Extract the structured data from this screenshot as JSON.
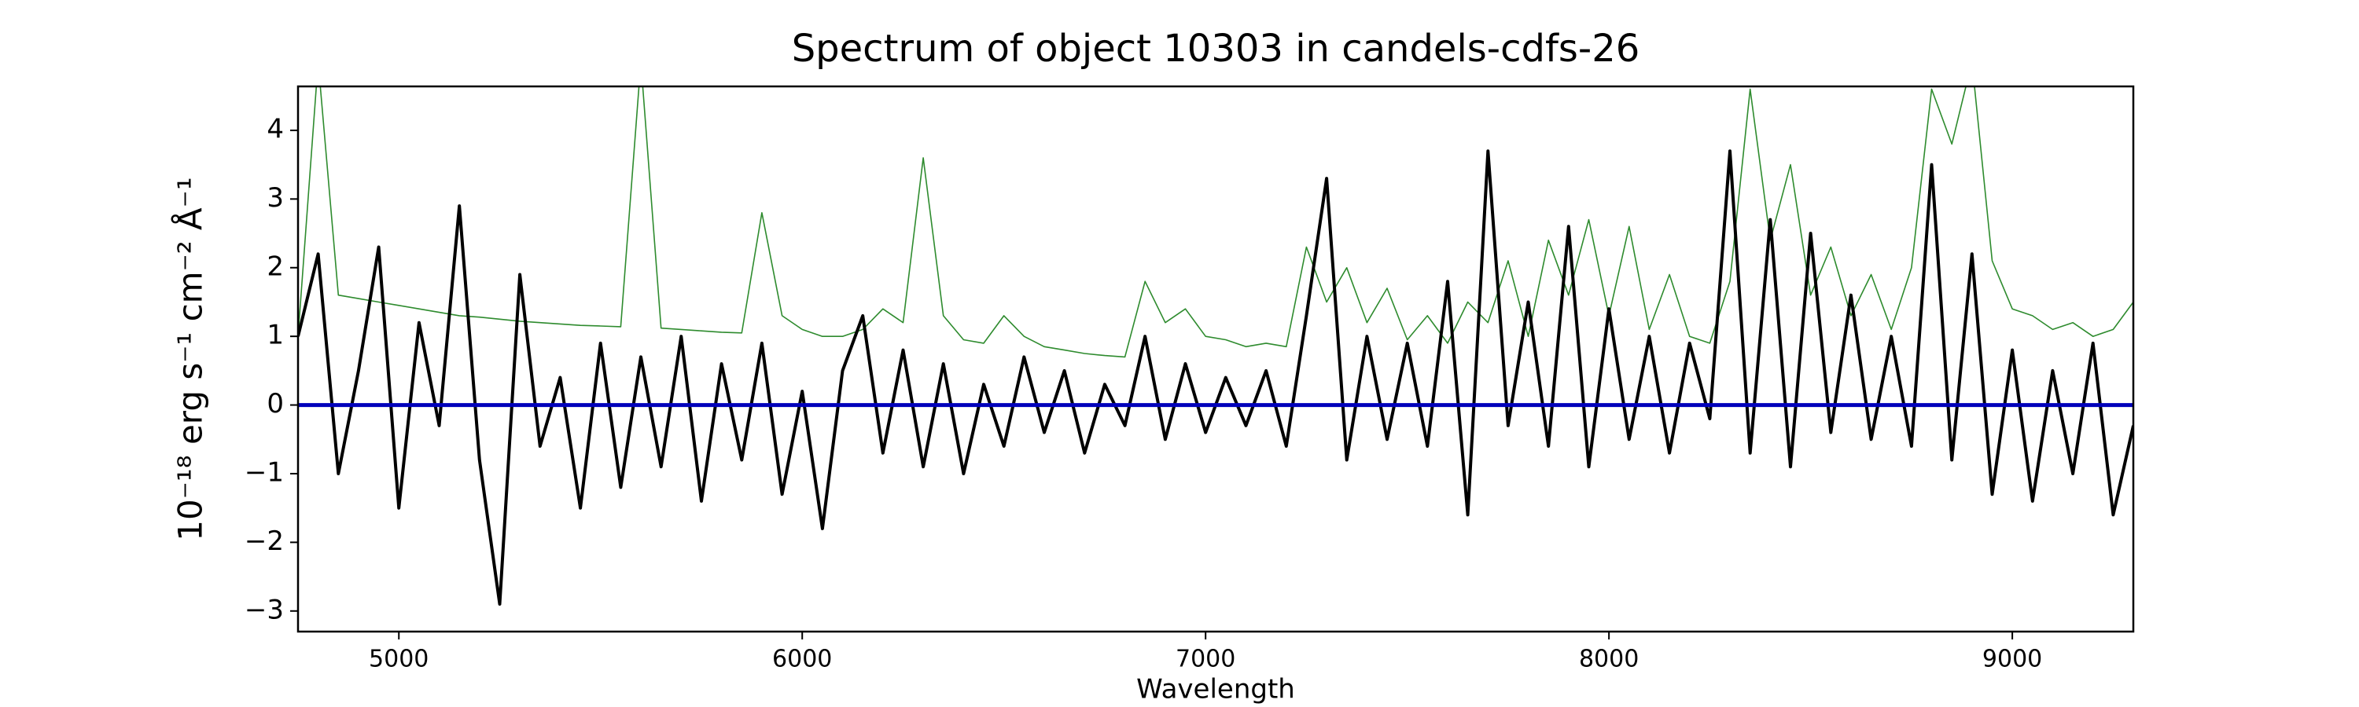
{
  "chart_data": {
    "type": "line",
    "title": "Spectrum of object 10303 in candels-cdfs-26",
    "x_label": "Wavelength",
    "y_label": "10⁻¹⁸ erg s⁻¹ cm⁻² Å⁻¹",
    "xlim": [
      4750,
      9300
    ],
    "ylim": [
      -3.3,
      4.64
    ],
    "xticks": [
      5000,
      6000,
      7000,
      8000,
      9000
    ],
    "yticks": [
      {
        "value": -3,
        "label": "−3"
      },
      {
        "value": -2,
        "label": "−2"
      },
      {
        "value": -1,
        "label": "−1"
      },
      0,
      1,
      2,
      3,
      4
    ],
    "series": [
      {
        "color": "#2e8b2e",
        "width": 1.6,
        "x": [
          4750,
          4800,
          4850,
          4900,
          4950,
          5000,
          5050,
          5100,
          5150,
          5200,
          5250,
          5300,
          5350,
          5400,
          5450,
          5500,
          5550,
          5600,
          5650,
          5700,
          5750,
          5800,
          5850,
          5900,
          5950,
          6000,
          6050,
          6100,
          6150,
          6200,
          6250,
          6300,
          6350,
          6400,
          6450,
          6500,
          6550,
          6600,
          6650,
          6700,
          6750,
          6800,
          6850,
          6900,
          6950,
          7000,
          7050,
          7100,
          7150,
          7200,
          7250,
          7300,
          7350,
          7400,
          7450,
          7500,
          7550,
          7600,
          7650,
          7700,
          7750,
          7800,
          7850,
          7900,
          7950,
          8000,
          8050,
          8100,
          8150,
          8200,
          8250,
          8300,
          8350,
          8400,
          8450,
          8500,
          8550,
          8600,
          8650,
          8700,
          8750,
          8800,
          8850,
          8900,
          8950,
          9000,
          9050,
          9100,
          9150,
          9200,
          9250,
          9300
        ],
        "values": [
          1.0,
          5.0,
          1.6,
          1.55,
          1.5,
          1.45,
          1.4,
          1.35,
          1.3,
          1.28,
          1.25,
          1.22,
          1.2,
          1.18,
          1.16,
          1.15,
          1.14,
          5.0,
          1.12,
          1.1,
          1.08,
          1.06,
          1.05,
          2.8,
          1.3,
          1.1,
          1.0,
          1.0,
          1.1,
          1.4,
          1.2,
          3.6,
          1.3,
          0.95,
          0.9,
          1.3,
          1.0,
          0.85,
          0.8,
          0.75,
          0.72,
          0.7,
          1.8,
          1.2,
          1.4,
          1.0,
          0.95,
          0.85,
          0.9,
          0.85,
          2.3,
          1.5,
          2.0,
          1.2,
          1.7,
          0.95,
          1.3,
          0.9,
          1.5,
          1.2,
          2.1,
          1.0,
          2.4,
          1.6,
          2.7,
          1.3,
          2.6,
          1.1,
          1.9,
          1.0,
          0.9,
          1.8,
          4.6,
          2.4,
          3.5,
          1.6,
          2.3,
          1.3,
          1.9,
          1.1,
          2.0,
          4.6,
          3.8,
          5.0,
          2.1,
          1.4,
          1.3,
          1.1,
          1.2,
          1.0,
          1.1,
          1.5
        ]
      },
      {
        "color": "#000000",
        "width": 4,
        "x": [
          4750,
          4800,
          4850,
          4900,
          4950,
          5000,
          5050,
          5100,
          5150,
          5200,
          5250,
          5300,
          5350,
          5400,
          5450,
          5500,
          5550,
          5600,
          5650,
          5700,
          5750,
          5800,
          5850,
          5900,
          5950,
          6000,
          6050,
          6100,
          6150,
          6200,
          6250,
          6300,
          6350,
          6400,
          6450,
          6500,
          6550,
          6600,
          6650,
          6700,
          6750,
          6800,
          6850,
          6900,
          6950,
          7000,
          7050,
          7100,
          7150,
          7200,
          7250,
          7300,
          7350,
          7400,
          7450,
          7500,
          7550,
          7600,
          7650,
          7700,
          7750,
          7800,
          7850,
          7900,
          7950,
          8000,
          8050,
          8100,
          8150,
          8200,
          8250,
          8300,
          8350,
          8400,
          8450,
          8500,
          8550,
          8600,
          8650,
          8700,
          8750,
          8800,
          8850,
          8900,
          8950,
          9000,
          9050,
          9100,
          9150,
          9200,
          9250,
          9300
        ],
        "values": [
          1.0,
          2.2,
          -1.0,
          0.5,
          2.3,
          -1.5,
          1.2,
          -0.3,
          2.9,
          -0.8,
          -2.9,
          1.9,
          -0.6,
          0.4,
          -1.5,
          0.9,
          -1.2,
          0.7,
          -0.9,
          1.0,
          -1.4,
          0.6,
          -0.8,
          0.9,
          -1.3,
          0.2,
          -1.8,
          0.5,
          1.3,
          -0.7,
          0.8,
          -0.9,
          0.6,
          -1.0,
          0.3,
          -0.6,
          0.7,
          -0.4,
          0.5,
          -0.7,
          0.3,
          -0.3,
          1.0,
          -0.5,
          0.6,
          -0.4,
          0.4,
          -0.3,
          0.5,
          -0.6,
          1.3,
          3.3,
          -0.8,
          1.0,
          -0.5,
          0.9,
          -0.6,
          1.8,
          -1.6,
          3.7,
          -0.3,
          1.5,
          -0.6,
          2.6,
          -0.9,
          1.4,
          -0.5,
          1.0,
          -0.7,
          0.9,
          -0.2,
          3.7,
          -0.7,
          2.7,
          -0.9,
          2.5,
          -0.4,
          1.6,
          -0.5,
          1.0,
          -0.6,
          3.5,
          -0.8,
          2.2,
          -1.3,
          0.8,
          -1.4,
          0.5,
          -1.0,
          0.9,
          -1.6,
          -0.3
        ]
      },
      {
        "color": "#0000bb",
        "width": 5,
        "x": [
          4750,
          9300
        ],
        "values": [
          0,
          0
        ]
      }
    ]
  }
}
